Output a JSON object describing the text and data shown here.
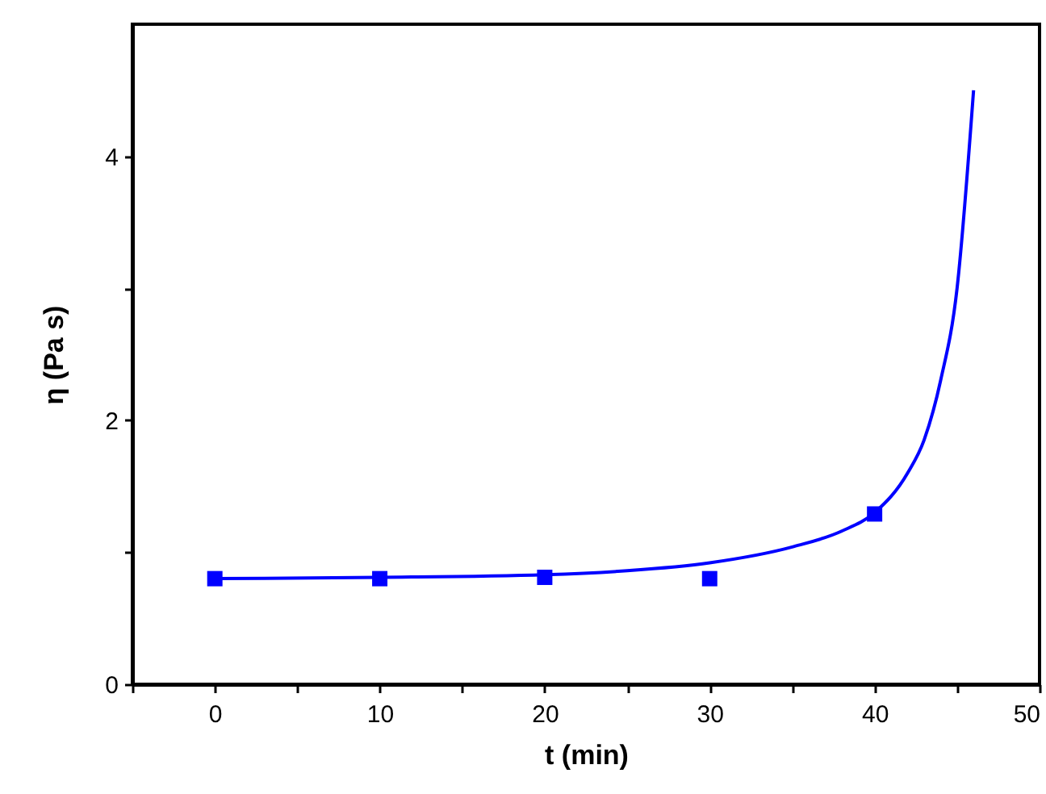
{
  "chart_data": {
    "type": "scatter",
    "xlabel": "t (min)",
    "ylabel": "η (Pa s)",
    "xlim": [
      -5,
      50
    ],
    "ylim": [
      0,
      5
    ],
    "xticks": [
      {
        "value": -5,
        "label": null
      },
      0,
      {
        "value": 5,
        "label": null
      },
      10,
      {
        "value": 15,
        "label": null
      },
      20,
      {
        "value": 25,
        "label": null
      },
      30,
      {
        "value": 35,
        "label": null
      },
      40,
      {
        "value": 45,
        "label": null
      },
      50
    ],
    "yticks": [
      0,
      {
        "value": 1,
        "label": null
      },
      2,
      {
        "value": 3,
        "label": null
      },
      4
    ],
    "grid": false,
    "series": [
      {
        "marker": "square",
        "color": "#0000ff",
        "x": [
          0,
          10,
          20,
          30,
          40
        ],
        "values": [
          0.8,
          0.8,
          0.81,
          0.8,
          1.29
        ]
      },
      {
        "type": "line",
        "marker": "none",
        "line_style": "solid",
        "color": "#0000ff",
        "x": [
          0,
          10,
          20,
          25,
          30,
          35,
          38,
          40,
          42,
          43,
          44,
          45,
          46
        ],
        "values": [
          0.8,
          0.81,
          0.83,
          0.86,
          0.92,
          1.04,
          1.16,
          1.3,
          1.6,
          1.85,
          2.3,
          3.0,
          4.5
        ]
      }
    ]
  }
}
